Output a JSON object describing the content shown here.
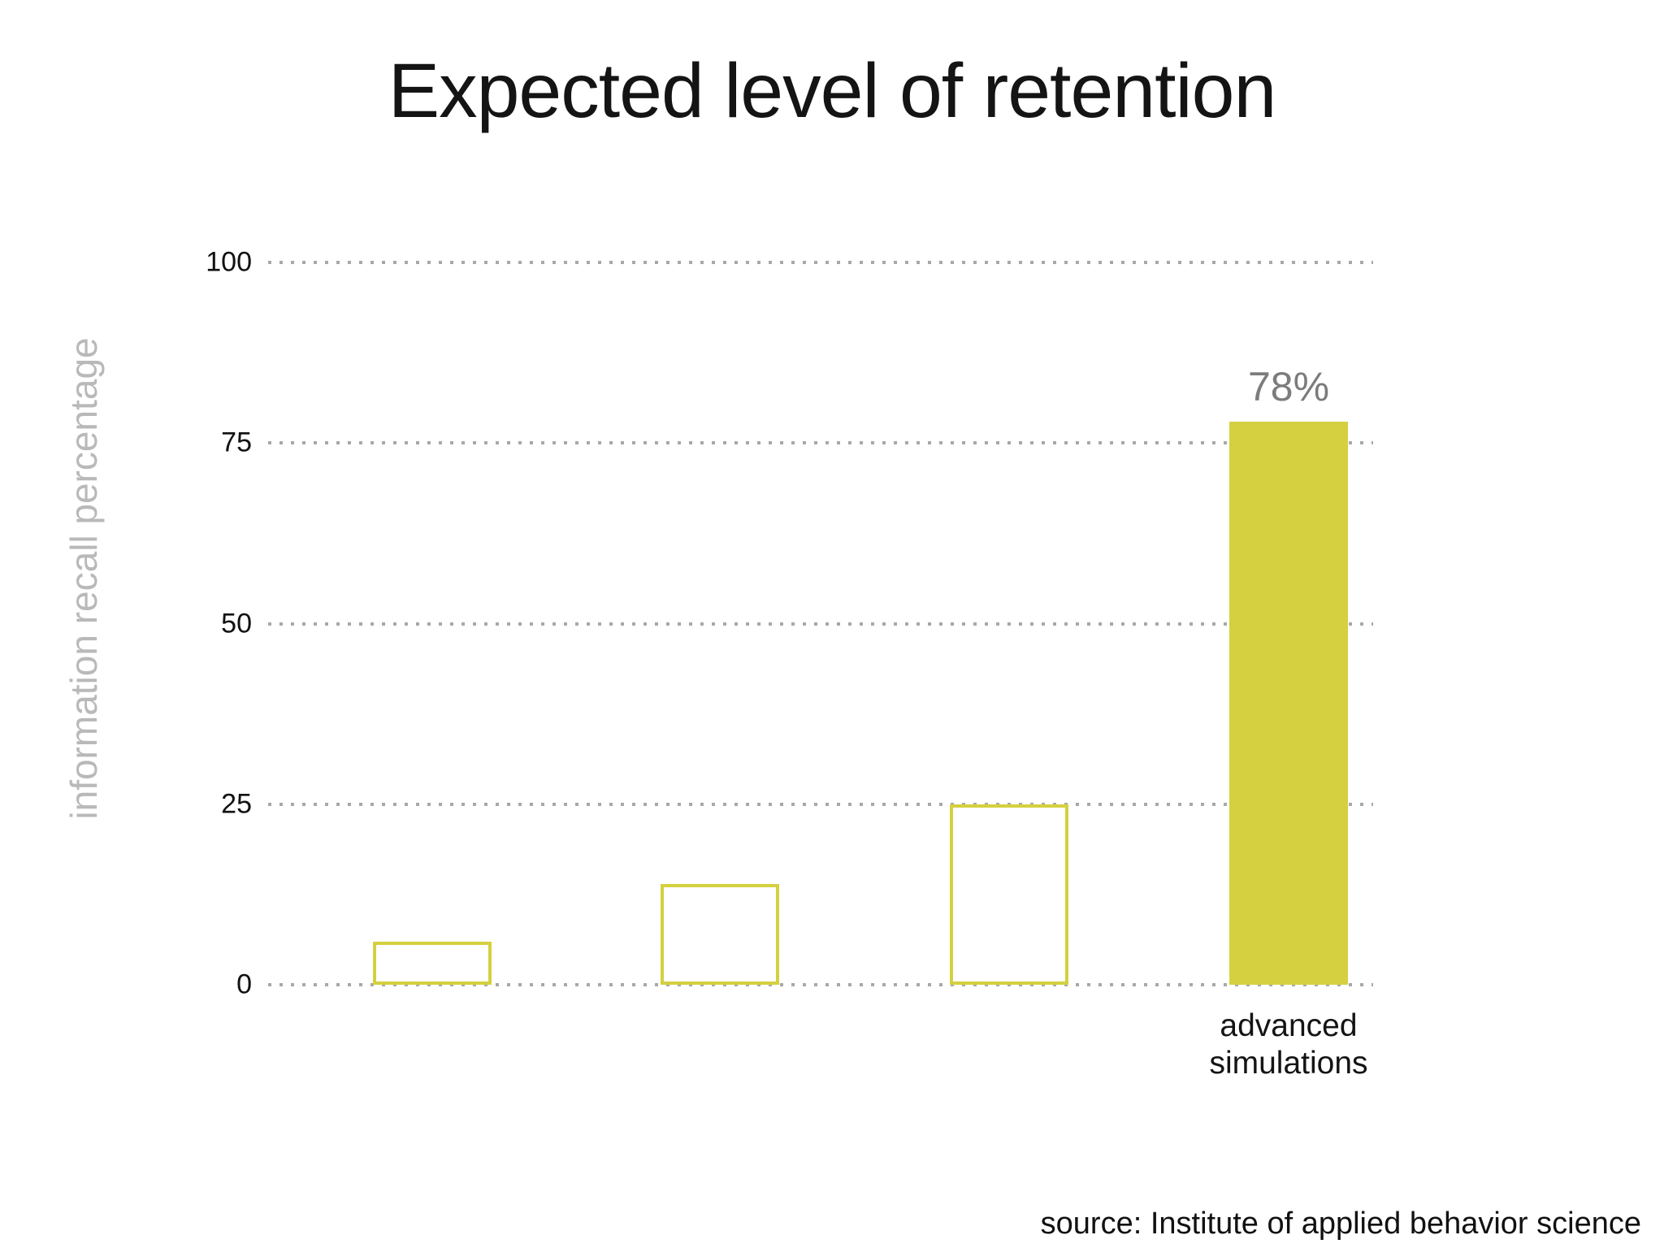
{
  "slide": {
    "title": "Expected level of retention",
    "source": "source: Institute of applied behavior science"
  },
  "chart_data": {
    "type": "bar",
    "title": "Expected level of retention",
    "xlabel": "",
    "ylabel": "information recall percentage",
    "ylim": [
      0,
      100
    ],
    "yticks": [
      100,
      75,
      50,
      25,
      0
    ],
    "grid": "horizontal dotted gridlines at each y tick",
    "legend": "none",
    "categories": [
      "",
      "",
      "",
      "advanced simulations"
    ],
    "values": [
      6,
      14,
      25,
      78
    ],
    "bar_styles": [
      "outline",
      "outline",
      "outline",
      "filled"
    ],
    "data_labels": [
      "",
      "",
      "",
      "78%"
    ],
    "colors": {
      "bar_fill": "#d4d03f",
      "bar_outline": "#d4d03f",
      "gridline": "#a8a8a8",
      "value_label": "#7c7c7c",
      "y_axis_label": "#b9b9b9",
      "tick_label": "#111111",
      "title": "#141414",
      "category_label": "#141414",
      "background": "#ffffff"
    }
  }
}
